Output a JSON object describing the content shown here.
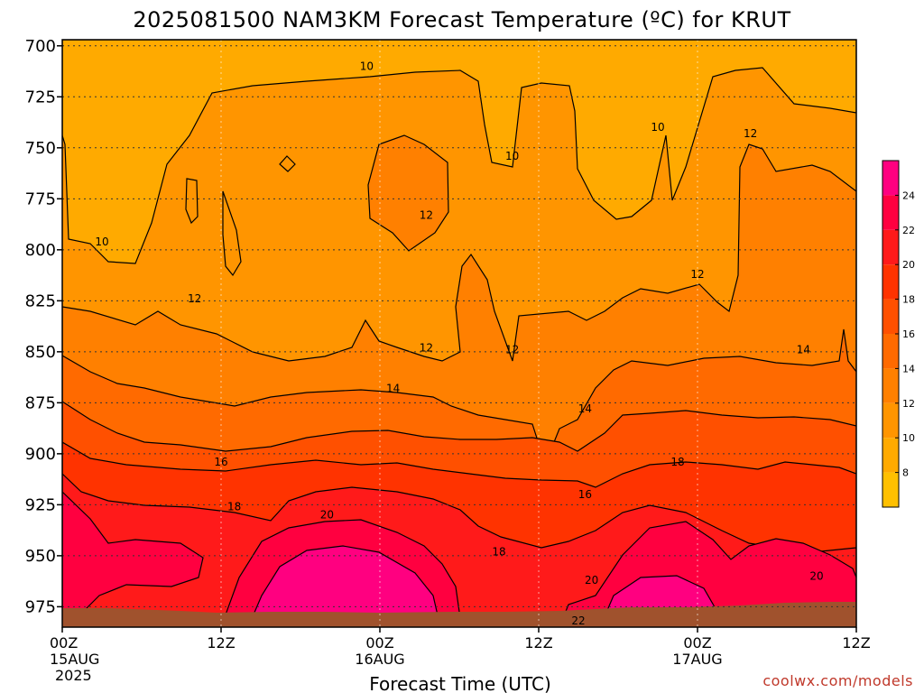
{
  "chart_data": {
    "type": "heatmap",
    "title": "2025081500 NAM3KM Forecast Temperature (ºC) for KRUT",
    "xlabel": "Forecast Time (UTC)",
    "ylabel": "",
    "y_axis": {
      "ticks": [
        700,
        725,
        750,
        775,
        800,
        825,
        850,
        875,
        900,
        925,
        950,
        975
      ],
      "range": [
        697,
        985
      ],
      "inverted": true,
      "units": "hPa"
    },
    "x_axis": {
      "range_hours": [
        0,
        60
      ],
      "ticks": [
        {
          "hour": 0,
          "label": "00Z",
          "sub1": "15AUG",
          "sub2": "2025"
        },
        {
          "hour": 12,
          "label": "12Z",
          "sub1": "",
          "sub2": ""
        },
        {
          "hour": 24,
          "label": "00Z",
          "sub1": "16AUG",
          "sub2": ""
        },
        {
          "hour": 36,
          "label": "12Z",
          "sub1": "",
          "sub2": ""
        },
        {
          "hour": 48,
          "label": "00Z",
          "sub1": "17AUG",
          "sub2": ""
        },
        {
          "hour": 60,
          "label": "12Z",
          "sub1": "",
          "sub2": ""
        }
      ]
    },
    "grid": true,
    "colorbar": {
      "placement": "right",
      "levels": [
        6,
        8,
        10,
        12,
        14,
        16,
        18,
        20,
        22,
        24,
        26
      ],
      "labels": [
        "8",
        "10",
        "12",
        "14",
        "16",
        "18",
        "20",
        "22",
        "24"
      ],
      "colors": [
        "#ffc000",
        "#ffaa00",
        "#ff9500",
        "#ff8000",
        "#ff6a00",
        "#ff5000",
        "#ff3300",
        "#ff1a1a",
        "#ff0040",
        "#ff0080"
      ]
    },
    "contour_labels": [
      {
        "text": "10",
        "hour": 23.0,
        "p": 710
      },
      {
        "text": "10",
        "hour": 3.0,
        "p": 796
      },
      {
        "text": "10",
        "hour": 34.0,
        "p": 754
      },
      {
        "text": "10",
        "hour": 45.0,
        "p": 740
      },
      {
        "text": "12",
        "hour": 52.0,
        "p": 743
      },
      {
        "text": "12",
        "hour": 27.5,
        "p": 783
      },
      {
        "text": "12",
        "hour": 10.0,
        "p": 824
      },
      {
        "text": "12",
        "hour": 27.5,
        "p": 848
      },
      {
        "text": "12",
        "hour": 34.0,
        "p": 849
      },
      {
        "text": "12",
        "hour": 48.0,
        "p": 812
      },
      {
        "text": "14",
        "hour": 25.0,
        "p": 868
      },
      {
        "text": "14",
        "hour": 39.5,
        "p": 878
      },
      {
        "text": "14",
        "hour": 56.0,
        "p": 849
      },
      {
        "text": "16",
        "hour": 12.0,
        "p": 904
      },
      {
        "text": "16",
        "hour": 39.5,
        "p": 920
      },
      {
        "text": "18",
        "hour": 13.0,
        "p": 926
      },
      {
        "text": "18",
        "hour": 33.0,
        "p": 948
      },
      {
        "text": "18",
        "hour": 46.5,
        "p": 904
      },
      {
        "text": "20",
        "hour": 20.0,
        "p": 930
      },
      {
        "text": "20",
        "hour": 40.0,
        "p": 962
      },
      {
        "text": "20",
        "hour": 57.0,
        "p": 960
      },
      {
        "text": "22",
        "hour": 39.0,
        "p": 982
      }
    ]
  },
  "credit": "coolwx.com/models"
}
